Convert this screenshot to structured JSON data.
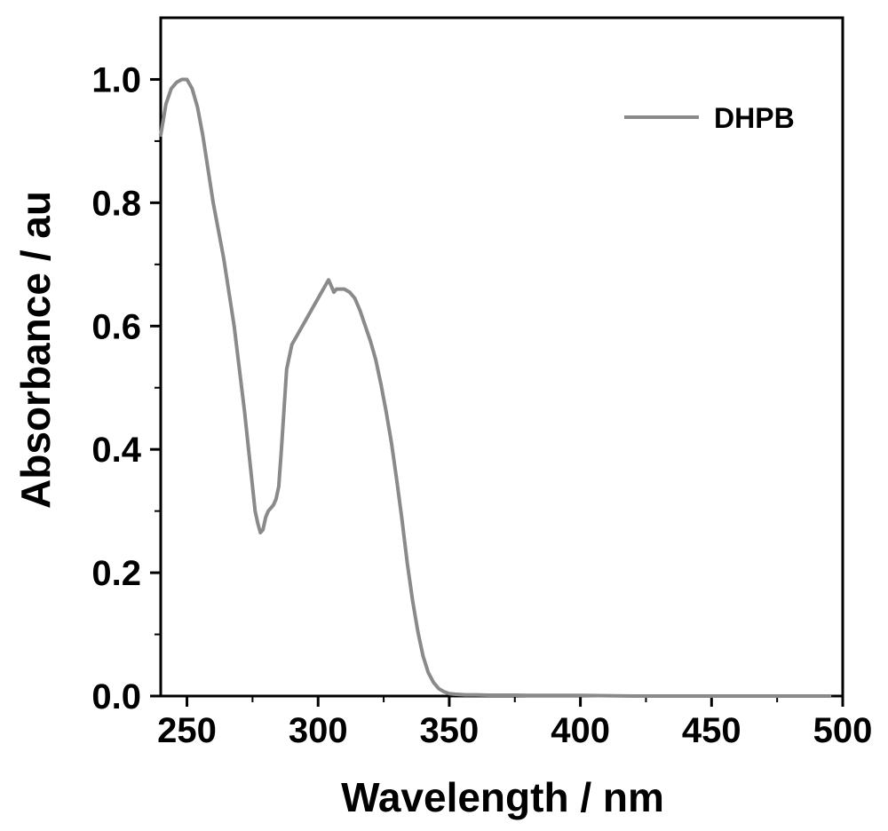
{
  "chart_data": {
    "type": "line",
    "title": "",
    "xlabel": "Wavelength / nm",
    "ylabel": "Absorbance / au",
    "xlim": [
      240,
      500
    ],
    "ylim": [
      0.0,
      1.1
    ],
    "x_ticks": [
      250,
      300,
      350,
      400,
      450,
      500
    ],
    "x_tick_labels": [
      "250",
      "300",
      "350",
      "400",
      "450",
      "500"
    ],
    "y_ticks": [
      0.0,
      0.2,
      0.4,
      0.6,
      0.8,
      1.0
    ],
    "y_tick_labels": [
      "0.0",
      "0.2",
      "0.4",
      "0.6",
      "0.8",
      "1.0"
    ],
    "grid": false,
    "legend_position": "top-right",
    "series": [
      {
        "name": "DHPB",
        "color": "#8a8a8a",
        "x": [
          240,
          242,
          244,
          246,
          248,
          250,
          252,
          254,
          256,
          258,
          260,
          262,
          264,
          266,
          268,
          270,
          272,
          274,
          276,
          277,
          278,
          279,
          280,
          281,
          282,
          283,
          284,
          285,
          286,
          288,
          290,
          292,
          294,
          296,
          298,
          300,
          302,
          304,
          305,
          306,
          307,
          308,
          310,
          312,
          314,
          316,
          318,
          320,
          322,
          324,
          326,
          328,
          330,
          332,
          334,
          336,
          338,
          340,
          342,
          344,
          346,
          348,
          350,
          352,
          354,
          356,
          358,
          360,
          365,
          370,
          375,
          380,
          390,
          400,
          420,
          440,
          460,
          480,
          495
        ],
        "y": [
          0.91,
          0.96,
          0.985,
          0.995,
          1.0,
          1.0,
          0.985,
          0.955,
          0.91,
          0.855,
          0.8,
          0.755,
          0.71,
          0.655,
          0.6,
          0.53,
          0.46,
          0.38,
          0.3,
          0.28,
          0.265,
          0.27,
          0.29,
          0.3,
          0.305,
          0.31,
          0.32,
          0.34,
          0.4,
          0.53,
          0.57,
          0.585,
          0.6,
          0.615,
          0.63,
          0.645,
          0.66,
          0.675,
          0.665,
          0.655,
          0.66,
          0.66,
          0.66,
          0.655,
          0.645,
          0.625,
          0.6,
          0.575,
          0.545,
          0.505,
          0.46,
          0.41,
          0.35,
          0.285,
          0.215,
          0.155,
          0.105,
          0.065,
          0.038,
          0.022,
          0.012,
          0.007,
          0.004,
          0.003,
          0.0025,
          0.002,
          0.002,
          0.002,
          0.0015,
          0.0015,
          0.0015,
          0.001,
          0.001,
          0.001,
          0.0,
          0.0,
          0.0,
          0.0,
          0.0
        ]
      }
    ]
  }
}
